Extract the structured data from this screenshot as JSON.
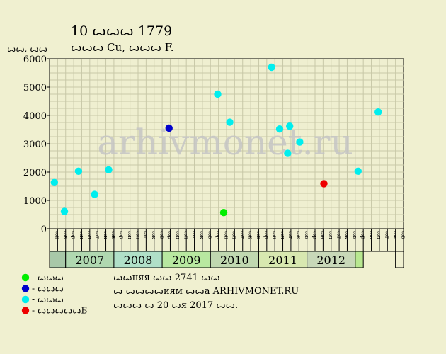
{
  "header": {
    "title": "10 ꙍꙍꙍ 1779",
    "subtitle": "ꙍꙍꙍ Cu, ꙍꙍꙍ F.",
    "units": "ꙍꙍ, ꙍꙍ"
  },
  "watermark": "arhivmonet.ru",
  "info": {
    "line1": "ꙍꙍняя ꙍꙍ 2741 ꙍꙍ",
    "line2": "ꙍ ꙍꙍꙍꙍиям ꙍꙍа ARHIVMONET.RU",
    "line3": "ꙍꙍꙍ ꙍ 20 ꙍя 2017 ꙍꙍ."
  },
  "chart_data": {
    "type": "scatter",
    "title": "10 ꙍꙍꙍ 1779",
    "ylabel": "ꙍꙍ, ꙍꙍ",
    "ylim": [
      0,
      6000
    ],
    "yticks": [
      0,
      1000,
      2000,
      3000,
      4000,
      5000,
      6000
    ],
    "grid": true,
    "legend_position": "bottom-left",
    "month_labels": [
      "ꙍк",
      "ꙍв",
      "ꙍр",
      "ꙍн",
      "ꙍл",
      "ꙍт",
      "ꙍк",
      "ꙍв",
      "ꙍр",
      "ꙍн",
      "ꙍл",
      "ꙍт",
      "ꙍк",
      "ꙍв",
      "ꙍр",
      "ꙍн",
      "ꙍл",
      "ꙍт",
      "ꙍк",
      "ꙍв",
      "ꙍр",
      "ꙍн",
      "ꙍл",
      "ꙍт",
      "ꙍк",
      "ꙍв",
      "ꙍр",
      "ꙍн",
      "ꙍл",
      "ꙍт",
      "ꙍк",
      "ꙍв",
      "ꙍр",
      "ꙍн",
      "ꙍл",
      "ꙍт",
      "ꙍк",
      "ꙍв",
      "ꙍр",
      "ꙍн",
      "ꙍл",
      "ꙍт",
      "ꙍк",
      "ꙍв"
    ],
    "years": [
      {
        "label": "2007",
        "start": 2,
        "end": 8,
        "color": "#b0d8b0"
      },
      {
        "label": "2008",
        "start": 8,
        "end": 14,
        "color": "#b0e0c8"
      },
      {
        "label": "2009",
        "start": 14,
        "end": 20,
        "color": "#b8e8a0"
      },
      {
        "label": "2010",
        "start": 20,
        "end": 26,
        "color": "#c0d8b0"
      },
      {
        "label": "2011",
        "start": 26,
        "end": 32,
        "color": "#d8e8b0"
      },
      {
        "label": "2012",
        "start": 32,
        "end": 38,
        "color": "#c8d8b8"
      },
      {
        "label": "",
        "start": 38,
        "end": 39,
        "color": "#b8e890"
      }
    ],
    "series": [
      {
        "name": "ꙍꙍꙍ",
        "color": "#00ee00",
        "points": [
          {
            "x": 21.65,
            "y": 570
          }
        ]
      },
      {
        "name": "ꙍꙍꙍ",
        "color": "#0000cc",
        "points": [
          {
            "x": 14.85,
            "y": 3550
          }
        ]
      },
      {
        "name": "ꙍꙍꙍ",
        "color": "#00eeee",
        "points": [
          {
            "x": 0.6,
            "y": 1630
          },
          {
            "x": 1.85,
            "y": 610
          },
          {
            "x": 3.6,
            "y": 2030
          },
          {
            "x": 5.6,
            "y": 1210
          },
          {
            "x": 7.35,
            "y": 2080
          },
          {
            "x": 20.9,
            "y": 4750
          },
          {
            "x": 22.4,
            "y": 3760
          },
          {
            "x": 27.6,
            "y": 5700
          },
          {
            "x": 28.6,
            "y": 3520
          },
          {
            "x": 29.6,
            "y": 2660
          },
          {
            "x": 29.85,
            "y": 3620
          },
          {
            "x": 31.1,
            "y": 3060
          },
          {
            "x": 38.35,
            "y": 2030
          },
          {
            "x": 40.85,
            "y": 4120
          }
        ]
      },
      {
        "name": "ꙍꙍꙍꙍꙍБ",
        "color": "#ee0000",
        "points": [
          {
            "x": 34.1,
            "y": 1590
          }
        ]
      }
    ]
  }
}
